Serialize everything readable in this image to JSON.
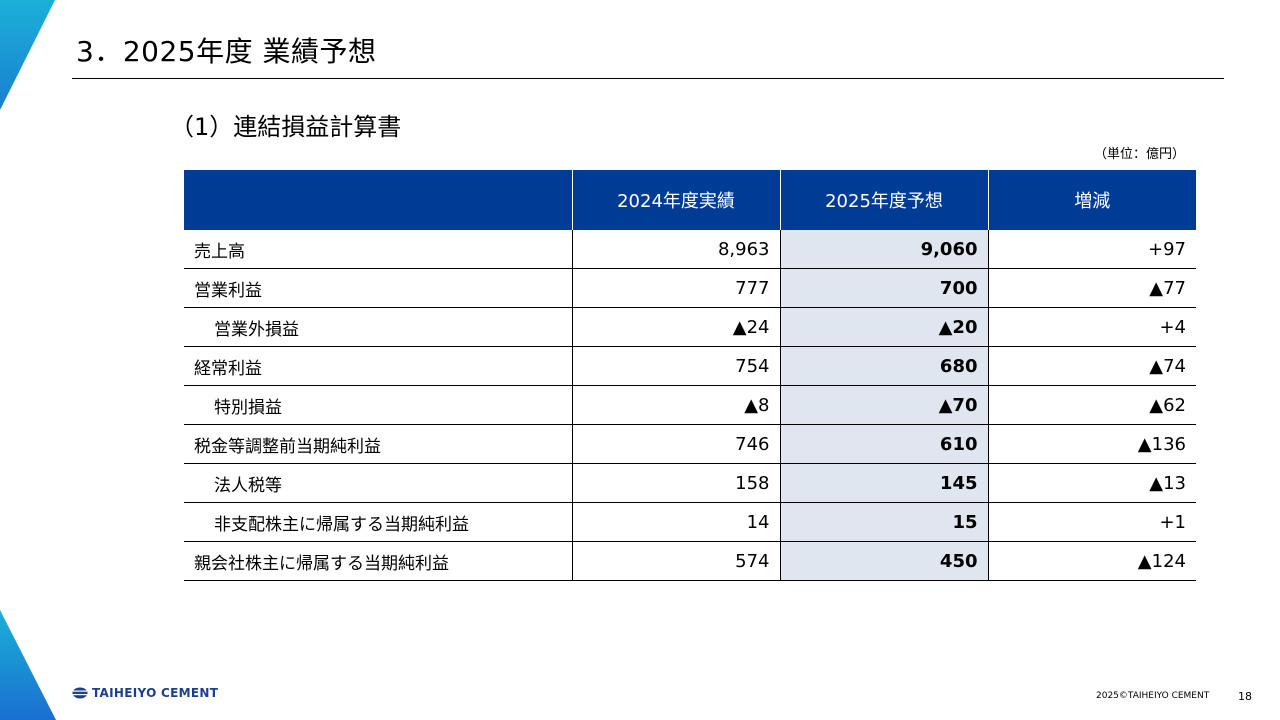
{
  "header": {
    "title": "3．2025年度 業績予想",
    "section_title": "（1）連結損益計算書",
    "unit_note": "（単位：億円）"
  },
  "table": {
    "headers": [
      "",
      "2024年度実績",
      "2025年度予想",
      "増減"
    ],
    "rows": [
      {
        "label": "売上高",
        "indent": false,
        "actual": "8,963",
        "forecast": "9,060",
        "change": "+97"
      },
      {
        "label": "営業利益",
        "indent": false,
        "actual": "777",
        "forecast": "700",
        "change": "▲77"
      },
      {
        "label": "営業外損益",
        "indent": true,
        "actual": "▲24",
        "forecast": "▲20",
        "change": "+4"
      },
      {
        "label": "経常利益",
        "indent": false,
        "actual": "754",
        "forecast": "680",
        "change": "▲74"
      },
      {
        "label": "特別損益",
        "indent": true,
        "actual": "▲8",
        "forecast": "▲70",
        "change": "▲62"
      },
      {
        "label": "税金等調整前当期純利益",
        "indent": false,
        "actual": "746",
        "forecast": "610",
        "change": "▲136"
      },
      {
        "label": "法人税等",
        "indent": true,
        "actual": "158",
        "forecast": "145",
        "change": "▲13"
      },
      {
        "label": "非支配株主に帰属する当期純利益",
        "indent": true,
        "actual": "14",
        "forecast": "15",
        "change": "+1"
      },
      {
        "label": "親会社株主に帰属する当期純利益",
        "indent": false,
        "actual": "574",
        "forecast": "450",
        "change": "▲124"
      }
    ]
  },
  "footer": {
    "logo_text": "TAIHEIYO CEMENT",
    "copyright": "2025©TAIHEIYO CEMENT",
    "page_number": "18"
  },
  "colors": {
    "header_bg": "#003c96",
    "forecast_col_bg": "#dfe6ef",
    "accent_corner": "#1a9ad6"
  }
}
